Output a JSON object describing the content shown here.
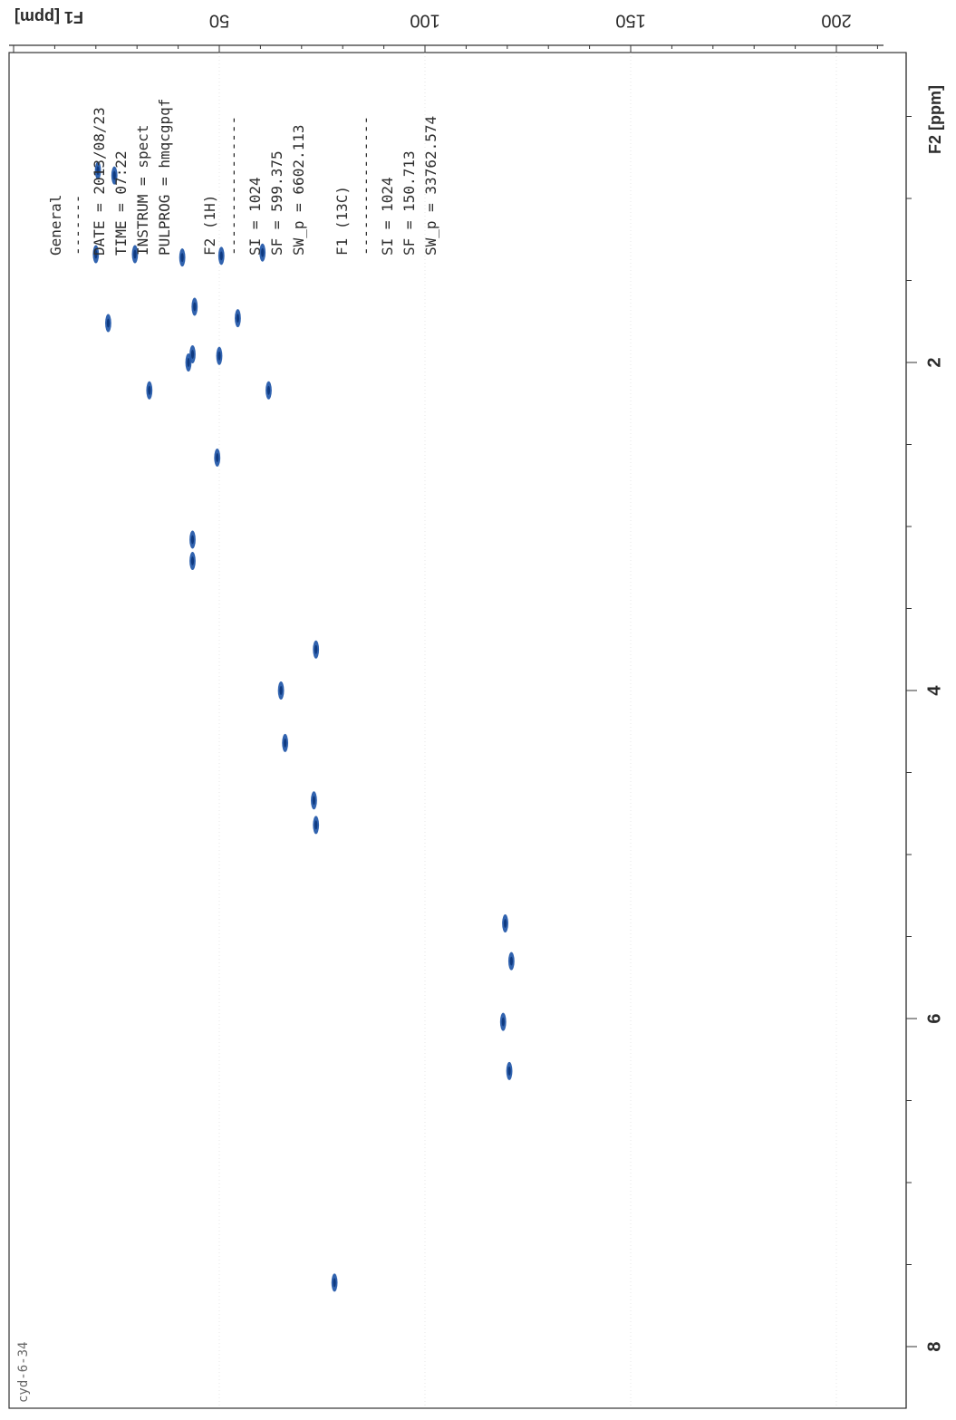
{
  "chart_data": {
    "type": "scatter",
    "subtype": "2D NMR HMQC contour plot (rotated)",
    "f1_axis": {
      "label": "F1 [ppm]",
      "ticks": [
        "50",
        "100",
        "150",
        "200"
      ],
      "range": [
        -12,
        220
      ]
    },
    "f2_axis": {
      "label": "F2 [ppm]",
      "ticks": [
        "2",
        "4",
        "6",
        "8"
      ],
      "range": [
        0.45,
        8.6
      ]
    },
    "peaks": [
      {
        "f2": 0.83,
        "f1": 20.5
      },
      {
        "f2": 0.86,
        "f1": 24.5
      },
      {
        "f2": 1.34,
        "f1": 20.0
      },
      {
        "f2": 1.34,
        "f1": 29.5
      },
      {
        "f2": 1.36,
        "f1": 41.0
      },
      {
        "f2": 1.35,
        "f1": 50.5
      },
      {
        "f2": 1.33,
        "f1": 60.5
      },
      {
        "f2": 1.66,
        "f1": 44.0
      },
      {
        "f2": 1.76,
        "f1": 23.0
      },
      {
        "f2": 1.73,
        "f1": 54.5
      },
      {
        "f2": 1.95,
        "f1": 43.5
      },
      {
        "f2": 1.96,
        "f1": 50.0
      },
      {
        "f2": 2.0,
        "f1": 42.5
      },
      {
        "f2": 2.17,
        "f1": 33.0
      },
      {
        "f2": 2.17,
        "f1": 62.0
      },
      {
        "f2": 2.58,
        "f1": 49.5
      },
      {
        "f2": 3.08,
        "f1": 43.5
      },
      {
        "f2": 3.21,
        "f1": 43.5
      },
      {
        "f2": 3.75,
        "f1": 73.5
      },
      {
        "f2": 4.0,
        "f1": 65.0
      },
      {
        "f2": 4.32,
        "f1": 66.0
      },
      {
        "f2": 4.67,
        "f1": 73.0
      },
      {
        "f2": 4.82,
        "f1": 73.5
      },
      {
        "f2": 5.42,
        "f1": 119.5
      },
      {
        "f2": 5.65,
        "f1": 121.0
      },
      {
        "f2": 6.02,
        "f1": 119.0
      },
      {
        "f2": 6.32,
        "f1": 120.5
      },
      {
        "f2": 7.61,
        "f1": 78.0
      }
    ]
  },
  "params": {
    "line_general": "General",
    "line_date": "DATE = 2013/08/23",
    "line_time": "TIME = 07:22",
    "line_instrum": "INSTRUM = spect",
    "line_pulprog": "PULPROG = hmqcgpqf",
    "line_f2": "F2 (1H)",
    "line_f2_si": "SI = 1024",
    "line_f2_sf": "SF = 599.375",
    "line_f2_sw": "SW_p = 6602.113",
    "line_f1": "F1 (13C)",
    "line_f1_si": "SI = 1024",
    "line_f1_sf": "SF = 150.713",
    "line_f1_sw": "SW_p = 33762.574"
  },
  "sample_id": "cyd-6-34",
  "colors": {
    "contour": "#1f56a8",
    "frame": "#333333",
    "grid": "#d8d8d8"
  }
}
